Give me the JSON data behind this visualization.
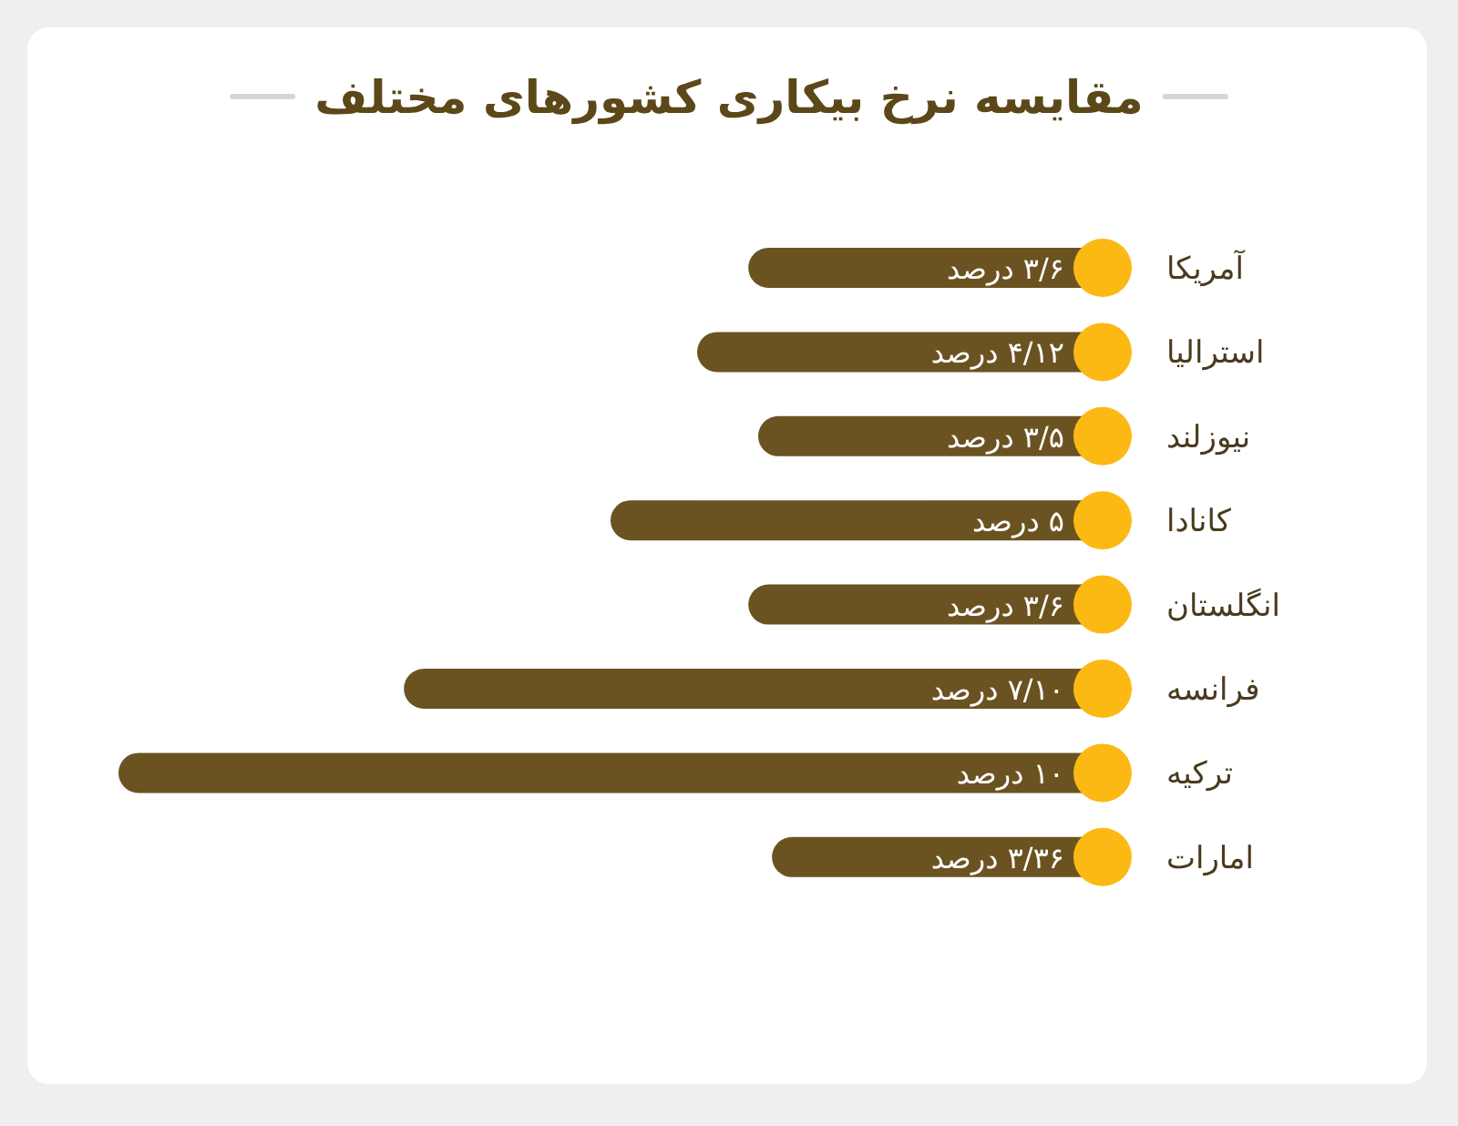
{
  "chart_data": {
    "type": "bar",
    "orientation": "horizontal",
    "title": "مقایسه نرخ بیکاری کشورهای مختلف",
    "categories": [
      "آمریکا",
      "استرالیا",
      "نیوزلند",
      "کانادا",
      "انگلستان",
      "فرانسه",
      "ترکیه",
      "امارات"
    ],
    "values": [
      3.6,
      4.12,
      3.5,
      5,
      3.6,
      7.1,
      10,
      3.36
    ],
    "value_labels": [
      "۳/۶ درصد",
      "۴/۱۲ درصد",
      "۳/۵ درصد",
      "۵ درصد",
      "۳/۶ درصد",
      "۷/۱۰ درصد",
      "۱۰ درصد",
      "۳/۳۶ درصد"
    ],
    "color": "#6b5321"
  }
}
